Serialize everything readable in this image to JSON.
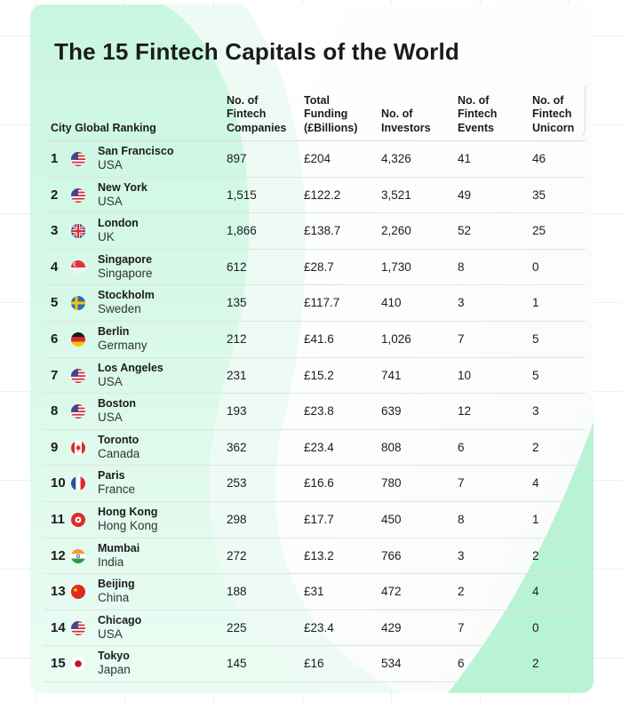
{
  "title": "The 15 Fintech Capitals of the World",
  "colors": {
    "card": "#f5fbf8",
    "accent_green": "#b9f3d6",
    "text": "#1c1c1c"
  },
  "chart_data": {
    "type": "table",
    "title": "The 15 Fintech Capitals of the World",
    "columns": [
      "City Global Ranking",
      "No. of\nFintech\nCompanies",
      "Total\nFunding\n(£Billions)",
      "No. of\nInvestors",
      "No. of\nFintech\nEvents",
      "No. of\nFintech\nUnicorn"
    ],
    "rows": [
      {
        "rank": "1",
        "city": "San Francisco",
        "country": "USA",
        "flag": "us-flag-icon",
        "companies": "897",
        "funding": "£204",
        "investors": "4,326",
        "events": "41",
        "unicorns": "46"
      },
      {
        "rank": "2",
        "city": "New York",
        "country": "USA",
        "flag": "us-flag-icon",
        "companies": "1,515",
        "funding": "£122.2",
        "investors": "3,521",
        "events": "49",
        "unicorns": "35"
      },
      {
        "rank": "3",
        "city": "London",
        "country": "UK",
        "flag": "uk-flag-icon",
        "companies": "1,866",
        "funding": "£138.7",
        "investors": "2,260",
        "events": "52",
        "unicorns": "25"
      },
      {
        "rank": "4",
        "city": "Singapore",
        "country": "Singapore",
        "flag": "sg-flag-icon",
        "companies": "612",
        "funding": "£28.7",
        "investors": "1,730",
        "events": "8",
        "unicorns": "0"
      },
      {
        "rank": "5",
        "city": "Stockholm",
        "country": "Sweden",
        "flag": "se-flag-icon",
        "companies": "135",
        "funding": "£117.7",
        "investors": "410",
        "events": "3",
        "unicorns": "1"
      },
      {
        "rank": "6",
        "city": "Berlin",
        "country": "Germany",
        "flag": "de-flag-icon",
        "companies": "212",
        "funding": "£41.6",
        "investors": "1,026",
        "events": "7",
        "unicorns": "5"
      },
      {
        "rank": "7",
        "city": "Los Angeles",
        "country": "USA",
        "flag": "us-flag-icon",
        "companies": "231",
        "funding": "£15.2",
        "investors": "741",
        "events": "10",
        "unicorns": "5"
      },
      {
        "rank": "8",
        "city": "Boston",
        "country": "USA",
        "flag": "us-flag-icon",
        "companies": "193",
        "funding": "£23.8",
        "investors": "639",
        "events": "12",
        "unicorns": "3"
      },
      {
        "rank": "9",
        "city": "Toronto",
        "country": "Canada",
        "flag": "ca-flag-icon",
        "companies": "362",
        "funding": "£23.4",
        "investors": "808",
        "events": "6",
        "unicorns": "2"
      },
      {
        "rank": "10",
        "city": "Paris",
        "country": "France",
        "flag": "fr-flag-icon",
        "companies": "253",
        "funding": "£16.6",
        "investors": "780",
        "events": "7",
        "unicorns": "4"
      },
      {
        "rank": "11",
        "city": "Hong Kong",
        "country": "Hong Kong",
        "flag": "hk-flag-icon",
        "companies": "298",
        "funding": "£17.7",
        "investors": "450",
        "events": "8",
        "unicorns": "1"
      },
      {
        "rank": "12",
        "city": "Mumbai",
        "country": "India",
        "flag": "in-flag-icon",
        "companies": "272",
        "funding": "£13.2",
        "investors": "766",
        "events": "3",
        "unicorns": "2"
      },
      {
        "rank": "13",
        "city": "Beijing",
        "country": "China",
        "flag": "cn-flag-icon",
        "companies": "188",
        "funding": "£31",
        "investors": "472",
        "events": "2",
        "unicorns": "4"
      },
      {
        "rank": "14",
        "city": "Chicago",
        "country": "USA",
        "flag": "us-flag-icon",
        "companies": "225",
        "funding": "£23.4",
        "investors": "429",
        "events": "7",
        "unicorns": "0"
      },
      {
        "rank": "15",
        "city": "Tokyo",
        "country": "Japan",
        "flag": "jp-flag-icon",
        "companies": "145",
        "funding": "£16",
        "investors": "534",
        "events": "6",
        "unicorns": "2"
      }
    ]
  }
}
